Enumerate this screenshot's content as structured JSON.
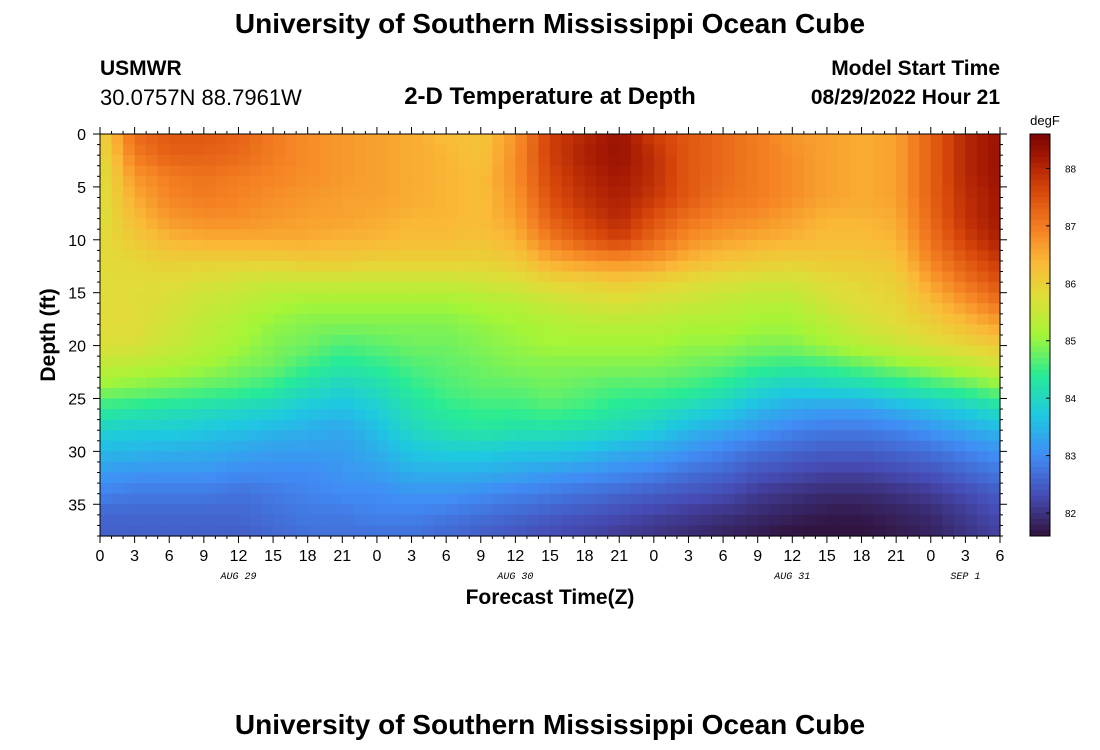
{
  "header": {
    "title": "University of Southern Mississippi Ocean Cube",
    "station": "USMWR",
    "coordinates": "30.0757N  88.7961W",
    "subtitle": "2-D Temperature at Depth",
    "model_start_label": "Model Start Time",
    "model_start_value": "08/29/2022 Hour 21"
  },
  "footer": {
    "title": "University of Southern Mississippi Ocean Cube"
  },
  "chart_data": {
    "type": "heatmap",
    "title": "2-D Temperature at Depth",
    "xlabel": "Forecast Time(Z)",
    "ylabel": "Depth (ft)",
    "x_tick_labels": [
      "0",
      "3",
      "6",
      "9",
      "12",
      "15",
      "18",
      "21",
      "0",
      "3",
      "6",
      "9",
      "12",
      "15",
      "18",
      "21",
      "0",
      "3",
      "6",
      "9",
      "12",
      "15",
      "18",
      "21",
      "0",
      "3",
      "6"
    ],
    "x_hours": [
      0,
      78
    ],
    "date_labels": [
      {
        "label": "AUG 29",
        "hour": 12
      },
      {
        "label": "AUG 30",
        "hour": 36
      },
      {
        "label": "AUG 31",
        "hour": 60
      },
      {
        "label": "SEP 1",
        "hour": 75
      }
    ],
    "y_ticks": [
      0,
      5,
      10,
      15,
      20,
      25,
      30,
      35
    ],
    "ylim": [
      0,
      38
    ],
    "colorbar": {
      "unit": "degF",
      "ticks": [
        82,
        83,
        84,
        85,
        86,
        87,
        88
      ],
      "range": [
        81.6,
        88.6
      ]
    },
    "colors": {
      "cold": "#30123b",
      "mid": "#a4fc3c",
      "warm": "#7a0403"
    },
    "grid": false,
    "depth_profiles_ft": [
      0,
      2,
      4,
      6,
      8,
      10,
      12,
      14,
      16,
      18,
      20,
      22,
      24,
      26,
      28,
      30,
      32,
      34,
      36,
      38
    ],
    "profile_hours": [
      0,
      3,
      6,
      9,
      12,
      15,
      18,
      21,
      24,
      27,
      30,
      33,
      36,
      39,
      42,
      45,
      48,
      51,
      54,
      57,
      60,
      63,
      66,
      69,
      72,
      75,
      78
    ],
    "values_degF_by_depth": [
      [
        85.9,
        87.2,
        87.4,
        87.4,
        87.3,
        87.0,
        86.8,
        86.7,
        86.6,
        86.5,
        86.3,
        86.2,
        86.7,
        87.7,
        88.0,
        88.3,
        87.7,
        87.4,
        87.2,
        87.0,
        86.7,
        86.6,
        86.5,
        86.6,
        87.3,
        88.0,
        88.3
      ],
      [
        85.8,
        87.0,
        87.3,
        87.3,
        87.2,
        87.0,
        86.8,
        86.7,
        86.6,
        86.5,
        86.4,
        86.2,
        86.8,
        87.7,
        88.1,
        88.3,
        87.9,
        87.4,
        87.2,
        87.0,
        86.8,
        86.6,
        86.5,
        86.6,
        87.3,
        88.0,
        88.3
      ],
      [
        85.7,
        86.7,
        87.0,
        87.1,
        87.0,
        86.9,
        86.8,
        86.7,
        86.6,
        86.5,
        86.4,
        86.3,
        86.8,
        87.6,
        88.0,
        88.2,
        87.9,
        87.4,
        87.2,
        87.0,
        86.8,
        86.6,
        86.5,
        86.6,
        87.3,
        88.0,
        88.3
      ],
      [
        85.7,
        86.5,
        86.9,
        87.0,
        86.9,
        86.8,
        86.7,
        86.6,
        86.6,
        86.5,
        86.4,
        86.3,
        86.7,
        87.5,
        87.9,
        88.1,
        87.8,
        87.4,
        87.1,
        87.0,
        86.8,
        86.6,
        86.5,
        86.6,
        87.3,
        87.9,
        88.2
      ],
      [
        85.7,
        86.3,
        86.7,
        86.8,
        86.8,
        86.7,
        86.6,
        86.6,
        86.5,
        86.4,
        86.4,
        86.3,
        86.6,
        87.3,
        87.7,
        88.0,
        87.5,
        87.1,
        86.9,
        86.8,
        86.6,
        86.4,
        86.4,
        86.5,
        87.2,
        87.9,
        88.2
      ],
      [
        85.8,
        86.1,
        86.4,
        86.5,
        86.5,
        86.5,
        86.5,
        86.4,
        86.4,
        86.3,
        86.3,
        86.2,
        86.4,
        87.0,
        87.4,
        87.7,
        87.2,
        86.8,
        86.6,
        86.5,
        86.4,
        86.3,
        86.3,
        86.4,
        87.1,
        87.7,
        88.1
      ],
      [
        85.8,
        85.9,
        86.0,
        86.0,
        86.0,
        86.0,
        86.1,
        86.1,
        86.0,
        86.0,
        86.0,
        86.0,
        86.1,
        86.5,
        86.7,
        86.8,
        86.7,
        86.4,
        86.2,
        86.1,
        86.0,
        86.1,
        86.1,
        86.2,
        86.9,
        87.4,
        87.8
      ],
      [
        85.8,
        85.8,
        85.8,
        85.7,
        85.6,
        85.5,
        85.5,
        85.5,
        85.5,
        85.5,
        85.5,
        85.6,
        85.7,
        85.9,
        86.0,
        86.1,
        86.0,
        85.8,
        85.7,
        85.6,
        85.6,
        85.8,
        85.9,
        86.0,
        86.6,
        87.1,
        87.5
      ],
      [
        85.8,
        85.8,
        85.7,
        85.5,
        85.4,
        85.2,
        85.1,
        85.1,
        85.1,
        85.1,
        85.1,
        85.2,
        85.3,
        85.5,
        85.6,
        85.7,
        85.6,
        85.5,
        85.4,
        85.3,
        85.3,
        85.6,
        85.8,
        85.9,
        86.3,
        86.7,
        87.1
      ],
      [
        85.8,
        85.8,
        85.6,
        85.4,
        85.2,
        85.0,
        84.9,
        84.9,
        84.9,
        84.9,
        84.9,
        85.0,
        85.1,
        85.2,
        85.3,
        85.3,
        85.3,
        85.2,
        85.2,
        85.1,
        85.1,
        85.3,
        85.6,
        85.8,
        86.0,
        86.3,
        86.6
      ],
      [
        85.7,
        85.7,
        85.5,
        85.3,
        85.1,
        84.9,
        84.8,
        84.6,
        84.7,
        84.8,
        84.8,
        84.9,
        85.0,
        85.1,
        85.1,
        85.1,
        85.1,
        85.0,
        85.0,
        84.9,
        84.9,
        85.1,
        85.3,
        85.5,
        85.7,
        85.9,
        86.1
      ],
      [
        85.4,
        85.3,
        85.2,
        85.1,
        84.9,
        84.8,
        84.5,
        84.3,
        84.4,
        84.6,
        84.7,
        84.8,
        84.9,
        84.9,
        84.9,
        84.9,
        84.9,
        84.8,
        84.7,
        84.5,
        84.4,
        84.5,
        84.7,
        84.9,
        85.1,
        85.3,
        85.6
      ],
      [
        85.0,
        84.9,
        84.8,
        84.7,
        84.6,
        84.4,
        84.1,
        83.9,
        84.1,
        84.4,
        84.6,
        84.7,
        84.7,
        84.8,
        84.7,
        84.6,
        84.6,
        84.5,
        84.3,
        84.0,
        83.8,
        83.9,
        84.0,
        84.2,
        84.4,
        84.6,
        84.9
      ],
      [
        84.4,
        84.3,
        84.2,
        84.1,
        84.0,
        83.9,
        83.7,
        83.6,
        83.8,
        84.2,
        84.4,
        84.5,
        84.5,
        84.6,
        84.5,
        84.3,
        84.2,
        84.0,
        83.8,
        83.5,
        83.3,
        83.2,
        83.2,
        83.4,
        83.6,
        83.8,
        84.1
      ],
      [
        83.9,
        83.8,
        83.8,
        83.7,
        83.6,
        83.5,
        83.4,
        83.3,
        83.6,
        84.0,
        84.2,
        84.3,
        84.2,
        84.2,
        84.1,
        84.0,
        83.8,
        83.5,
        83.3,
        83.1,
        82.9,
        82.8,
        82.8,
        82.9,
        83.1,
        83.3,
        83.5
      ],
      [
        83.5,
        83.5,
        83.4,
        83.4,
        83.3,
        83.2,
        83.2,
        83.2,
        83.4,
        83.7,
        83.8,
        83.8,
        83.7,
        83.7,
        83.6,
        83.4,
        83.3,
        83.1,
        82.9,
        82.7,
        82.6,
        82.5,
        82.5,
        82.6,
        82.7,
        82.9,
        83.1
      ],
      [
        83.2,
        83.1,
        83.1,
        83.1,
        83.0,
        83.0,
        83.0,
        83.1,
        83.2,
        83.4,
        83.4,
        83.4,
        83.3,
        83.2,
        83.1,
        83.0,
        82.9,
        82.7,
        82.6,
        82.4,
        82.3,
        82.2,
        82.2,
        82.3,
        82.4,
        82.6,
        82.8
      ],
      [
        82.9,
        82.8,
        82.8,
        82.8,
        82.7,
        82.8,
        82.9,
        83.0,
        83.0,
        83.1,
        83.1,
        83.0,
        82.9,
        82.8,
        82.7,
        82.6,
        82.5,
        82.4,
        82.3,
        82.1,
        82.0,
        81.9,
        81.9,
        82.0,
        82.1,
        82.3,
        82.5
      ],
      [
        82.6,
        82.6,
        82.6,
        82.6,
        82.6,
        82.7,
        82.8,
        82.8,
        82.9,
        82.9,
        82.8,
        82.7,
        82.6,
        82.5,
        82.4,
        82.3,
        82.2,
        82.1,
        82.0,
        81.9,
        81.8,
        81.7,
        81.7,
        81.8,
        81.9,
        82.1,
        82.3
      ],
      [
        82.5,
        82.5,
        82.5,
        82.5,
        82.5,
        82.6,
        82.7,
        82.7,
        82.7,
        82.7,
        82.6,
        82.5,
        82.4,
        82.3,
        82.2,
        82.1,
        82.0,
        81.9,
        81.8,
        81.7,
        81.6,
        81.6,
        81.6,
        81.7,
        81.8,
        82.0,
        82.2
      ]
    ]
  }
}
